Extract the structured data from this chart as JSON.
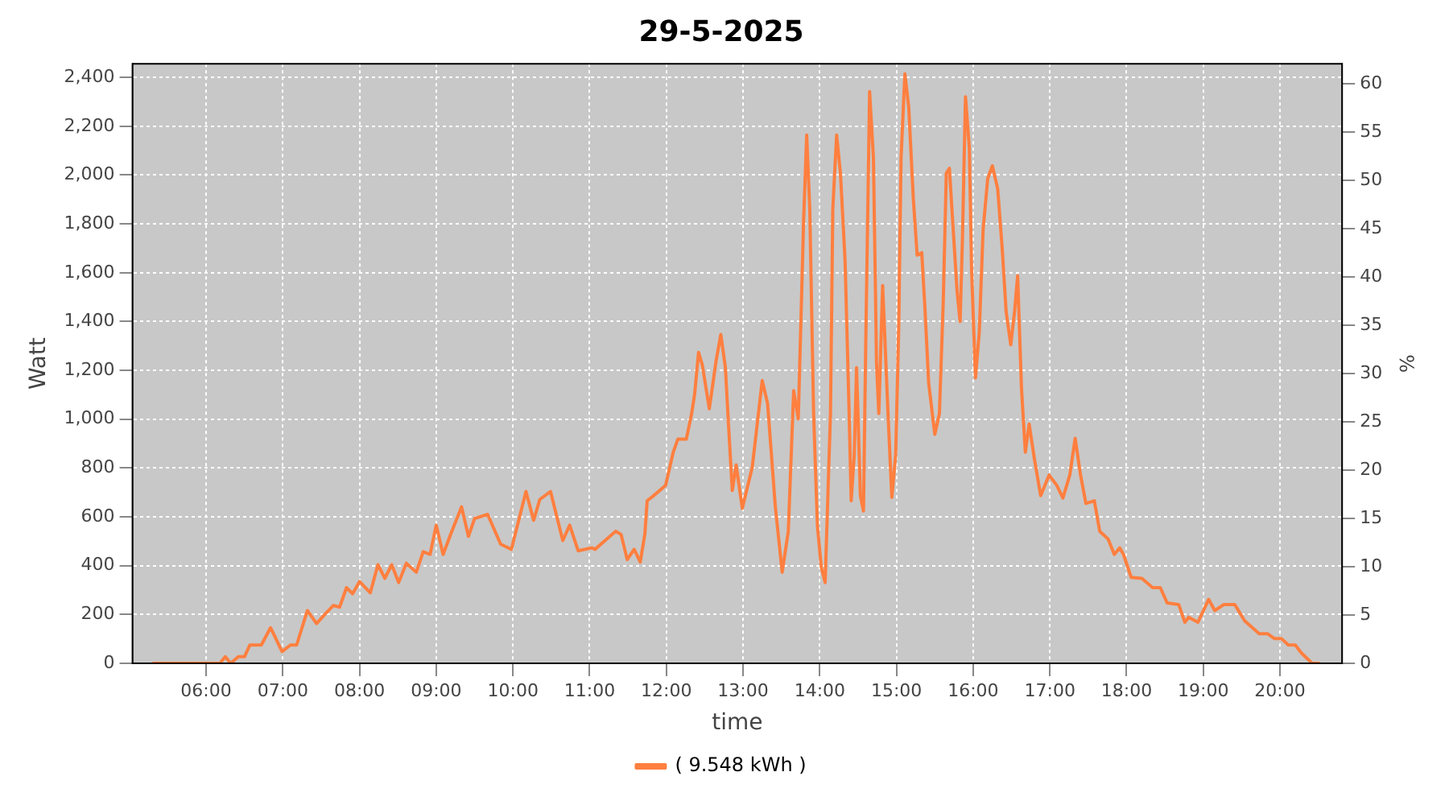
{
  "chart_data": {
    "type": "line",
    "title": "29-5-2025",
    "xlabel": "time",
    "ylabel": "Watt",
    "y2label": "%",
    "x": [
      5.3,
      6.18,
      6.25,
      6.32,
      6.42,
      6.5,
      6.57,
      6.72,
      6.84,
      6.99,
      7.1,
      7.18,
      7.32,
      7.44,
      7.56,
      7.66,
      7.74,
      7.83,
      7.91,
      8.0,
      8.14,
      8.24,
      8.33,
      8.42,
      8.51,
      8.61,
      8.74,
      8.83,
      8.92,
      9.0,
      9.09,
      9.19,
      9.33,
      9.42,
      9.5,
      9.67,
      9.84,
      9.98,
      10.17,
      10.27,
      10.35,
      10.49,
      10.65,
      10.74,
      10.85,
      11.03,
      11.07,
      11.34,
      11.41,
      11.49,
      11.58,
      11.66,
      11.72,
      11.75,
      11.82,
      11.99,
      12.09,
      12.15,
      12.26,
      12.33,
      12.37,
      12.42,
      12.47,
      12.56,
      12.65,
      12.71,
      12.77,
      12.81,
      12.86,
      12.91,
      12.99,
      13.12,
      13.25,
      13.32,
      13.42,
      13.51,
      13.59,
      13.66,
      13.72,
      13.79,
      13.83,
      13.87,
      13.92,
      13.97,
      14.02,
      14.07,
      14.14,
      14.17,
      14.22,
      14.27,
      14.33,
      14.38,
      14.41,
      14.45,
      14.48,
      14.53,
      14.57,
      14.6,
      14.65,
      14.7,
      14.74,
      14.77,
      14.82,
      14.89,
      14.94,
      14.99,
      15.03,
      15.06,
      15.11,
      15.16,
      15.22,
      15.27,
      15.33,
      15.37,
      15.42,
      15.5,
      15.56,
      15.61,
      15.65,
      15.69,
      15.74,
      15.79,
      15.83,
      15.86,
      15.9,
      15.95,
      15.98,
      16.03,
      16.08,
      16.13,
      16.19,
      16.25,
      16.32,
      16.38,
      16.43,
      16.49,
      16.54,
      16.58,
      16.63,
      16.68,
      16.73,
      16.8,
      16.88,
      16.99,
      17.09,
      17.17,
      17.26,
      17.33,
      17.4,
      17.47,
      17.58,
      17.65,
      17.76,
      17.84,
      17.91,
      17.96,
      18.06,
      18.2,
      18.34,
      18.44,
      18.53,
      18.68,
      18.76,
      18.81,
      18.93,
      19.07,
      19.15,
      19.27,
      19.41,
      19.54,
      19.73,
      19.84,
      19.93,
      20.02,
      20.11,
      20.2,
      20.28,
      20.42,
      20.52
    ],
    "series": [
      {
        "name": "( 9.548 kWh )",
        "color": "#ff7f3f",
        "values": [
          0,
          0,
          27,
          0,
          27,
          27,
          75,
          75,
          146,
          48,
          75,
          75,
          216,
          163,
          205,
          237,
          230,
          310,
          285,
          335,
          289,
          404,
          348,
          404,
          331,
          410,
          373,
          457,
          446,
          566,
          446,
          530,
          641,
          520,
          593,
          610,
          488,
          467,
          704,
          586,
          671,
          704,
          503,
          566,
          461,
          473,
          467,
          541,
          528,
          425,
          467,
          415,
          530,
          666,
          683,
          729,
          865,
          918,
          918,
          1023,
          1106,
          1274,
          1221,
          1043,
          1242,
          1347,
          1211,
          980,
          708,
          813,
          635,
          803,
          1158,
          1064,
          645,
          373,
          541,
          1117,
          1001,
          1818,
          2164,
          1860,
          1023,
          562,
          394,
          331,
          1023,
          1860,
          2164,
          2007,
          1651,
          1064,
          666,
          855,
          1211,
          687,
          624,
          1316,
          2342,
          2070,
          1232,
          1023,
          1547,
          1023,
          680,
          855,
          1378,
          2070,
          2415,
          2279,
          1902,
          1672,
          1682,
          1463,
          1148,
          938,
          1023,
          1483,
          2007,
          2028,
          1777,
          1525,
          1400,
          1735,
          2321,
          2112,
          1609,
          1169,
          1358,
          1777,
          1986,
          2038,
          1944,
          1693,
          1441,
          1305,
          1441,
          1588,
          1127,
          865,
          980,
          834,
          687,
          771,
          729,
          677,
          771,
          922,
          771,
          655,
          666,
          541,
          509,
          446,
          473,
          446,
          352,
          348,
          310,
          310,
          247,
          241,
          168,
          189,
          168,
          262,
          216,
          241,
          241,
          174,
          121,
          121,
          101,
          101,
          75,
          75,
          42,
          0,
          0
        ]
      }
    ],
    "xlim": [
      5.04,
      20.81
    ],
    "xticks": [
      {
        "value": 6,
        "label": "06:00"
      },
      {
        "value": 7,
        "label": "07:00"
      },
      {
        "value": 8,
        "label": "08:00"
      },
      {
        "value": 9,
        "label": "09:00"
      },
      {
        "value": 10,
        "label": "10:00"
      },
      {
        "value": 11,
        "label": "11:00"
      },
      {
        "value": 12,
        "label": "12:00"
      },
      {
        "value": 13,
        "label": "13:00"
      },
      {
        "value": 14,
        "label": "14:00"
      },
      {
        "value": 15,
        "label": "15:00"
      },
      {
        "value": 16,
        "label": "16:00"
      },
      {
        "value": 17,
        "label": "17:00"
      },
      {
        "value": 18,
        "label": "18:00"
      },
      {
        "value": 19,
        "label": "19:00"
      },
      {
        "value": 20,
        "label": "20:00"
      }
    ],
    "ylim": [
      0,
      2456
    ],
    "yticks": [
      0,
      200,
      400,
      600,
      800,
      {
        "value": 1000,
        "label": "1,000"
      },
      {
        "value": 1200,
        "label": "1,200"
      },
      {
        "value": 1400,
        "label": "1,400"
      },
      {
        "value": 1600,
        "label": "1,600"
      },
      {
        "value": 1800,
        "label": "1,800"
      },
      {
        "value": 2000,
        "label": "2,000"
      },
      {
        "value": 2200,
        "label": "2,200"
      },
      {
        "value": 2400,
        "label": "2,400"
      }
    ],
    "y2lim": [
      0,
      62.1
    ],
    "y2ticks": [
      0,
      5,
      10,
      15,
      20,
      25,
      30,
      35,
      40,
      45,
      50,
      55,
      60
    ],
    "grid": true,
    "legend": "bottom",
    "marker": "none",
    "line_style": "solid"
  }
}
